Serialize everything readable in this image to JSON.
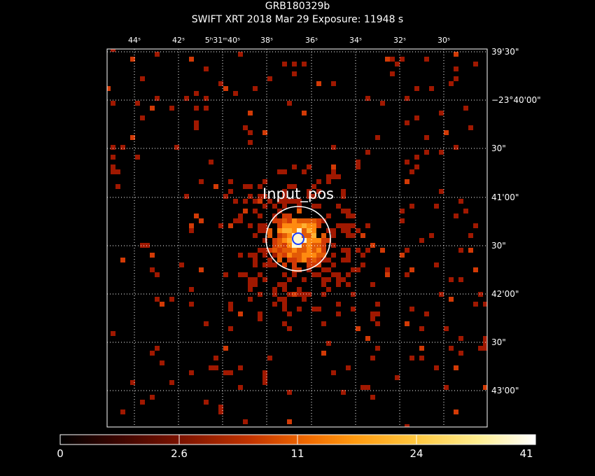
{
  "header": {
    "title": "GRB180329b",
    "subtitle": "SWIFT XRT   2018 Mar 29    Exposure: 11948 s"
  },
  "ra_axis": {
    "ticks": [
      {
        "label": "44ˢ"
      },
      {
        "label": "42ˢ"
      },
      {
        "label": "5ʰ31ᵐ40ˢ"
      },
      {
        "label": "38ˢ"
      },
      {
        "label": "36ˢ"
      },
      {
        "label": "34ˢ"
      },
      {
        "label": "32ˢ"
      },
      {
        "label": "30ˢ"
      }
    ]
  },
  "dec_axis": {
    "ticks": [
      {
        "label": "39'30\""
      },
      {
        "label": "−23°40'00\""
      },
      {
        "label": "30\""
      },
      {
        "label": "41'00\""
      },
      {
        "label": "30\""
      },
      {
        "label": "42'00\""
      },
      {
        "label": "30\""
      },
      {
        "label": "43'00\""
      }
    ]
  },
  "source": {
    "label": "Input_pos"
  },
  "colorbar": {
    "ticks": [
      {
        "label": "0"
      },
      {
        "label": "2.6"
      },
      {
        "label": "11"
      },
      {
        "label": "24"
      },
      {
        "label": "41"
      }
    ],
    "min": 0,
    "max": 41
  },
  "colors": {
    "background": "#000000",
    "grid": "#ffffff",
    "faint_count": "#a01800",
    "dim_count": "#d23a06",
    "bright_core": "#ffb030",
    "error_circle": "#1a3cff",
    "source_circle": "#ffffff"
  }
}
